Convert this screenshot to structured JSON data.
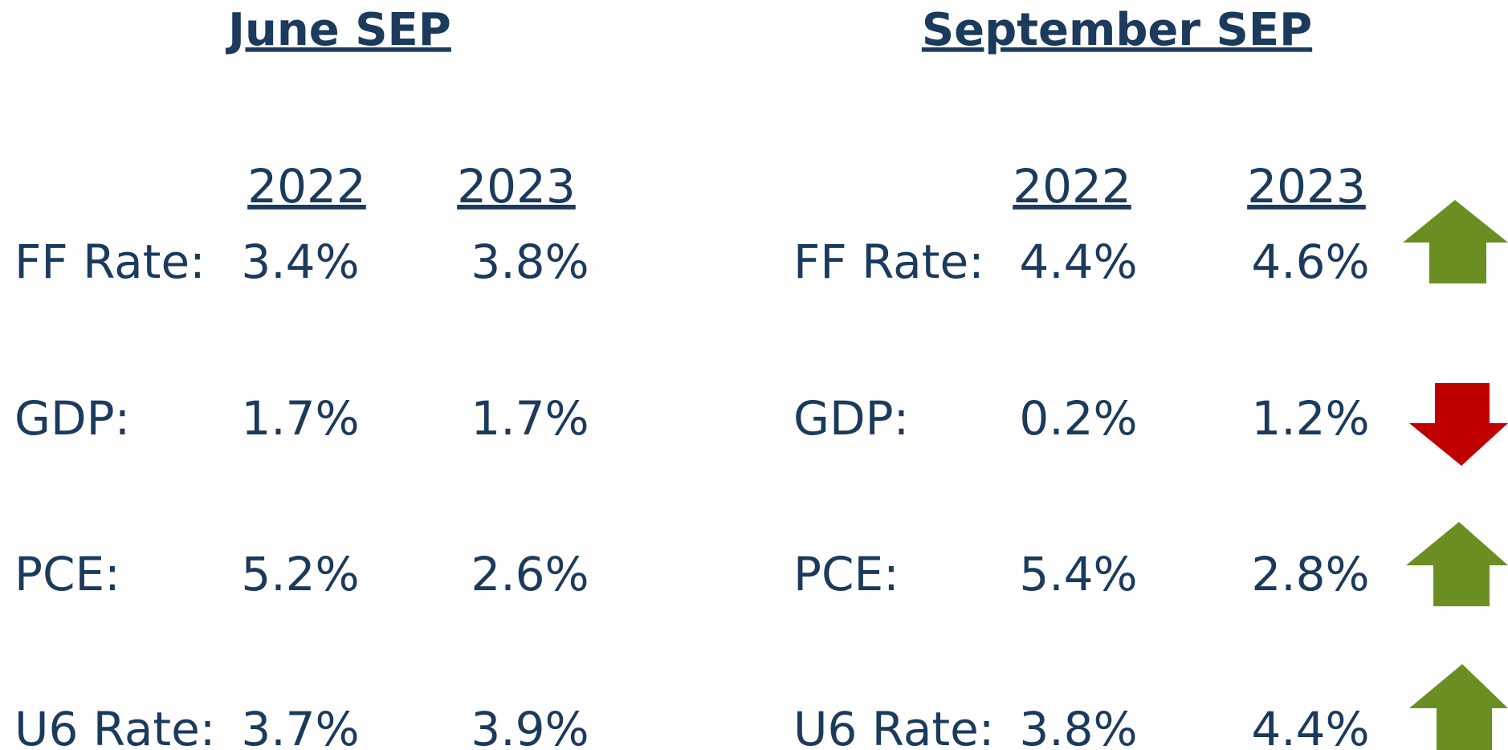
{
  "panels": [
    {
      "title": "June SEP",
      "years": [
        "2022",
        "2023"
      ],
      "rows": [
        {
          "label": "FF Rate:",
          "values": [
            "3.4%",
            "3.8%"
          ]
        },
        {
          "label": "GDP:",
          "values": [
            "1.7%",
            "1.7%"
          ]
        },
        {
          "label": "PCE:",
          "values": [
            "5.2%",
            "2.6%"
          ]
        },
        {
          "label": "U6 Rate:",
          "values": [
            "3.7%",
            "3.9%"
          ]
        }
      ]
    },
    {
      "title": "September SEP",
      "years": [
        "2022",
        "2023"
      ],
      "rows": [
        {
          "label": "FF Rate:",
          "values": [
            "4.4%",
            "4.6%"
          ]
        },
        {
          "label": "GDP:",
          "values": [
            "0.2%",
            "1.2%"
          ]
        },
        {
          "label": "PCE:",
          "values": [
            "5.4%",
            "2.8%"
          ]
        },
        {
          "label": "U6 Rate:",
          "values": [
            "3.8%",
            "4.4%"
          ]
        }
      ]
    }
  ]
}
